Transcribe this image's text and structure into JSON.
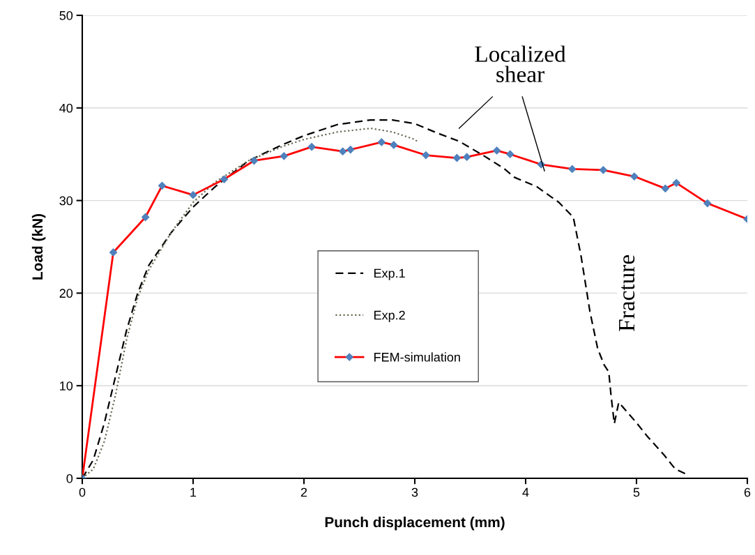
{
  "chart_data": {
    "type": "line",
    "xlabel": "Punch displacement (mm)",
    "ylabel": "Load (kN)",
    "xlim": [
      0,
      6
    ],
    "ylim": [
      0,
      50
    ],
    "xticks": [
      0,
      1,
      2,
      3,
      4,
      5,
      6
    ],
    "yticks": [
      0,
      10,
      20,
      30,
      40,
      50
    ],
    "grid": "y",
    "legend": "center",
    "series": [
      {
        "name": "Exp.1",
        "color": "#000000",
        "line_style": "dashed",
        "marker": "none",
        "x": [
          0,
          0.1,
          0.2,
          0.3,
          0.4,
          0.5,
          0.6,
          0.8,
          1.0,
          1.2,
          1.5,
          1.8,
          2.0,
          2.3,
          2.6,
          2.8,
          3.0,
          3.2,
          3.4,
          3.6,
          3.8,
          3.9,
          4.1,
          4.3,
          4.43,
          4.5,
          4.58,
          4.65,
          4.71,
          4.75,
          4.77,
          4.8,
          4.84,
          5.0,
          5.1,
          5.25,
          5.35,
          5.44
        ],
        "values": [
          0,
          2,
          6,
          11,
          16,
          20,
          23,
          26.5,
          29.3,
          31.5,
          34.3,
          36,
          37,
          38.2,
          38.7,
          38.7,
          38.3,
          37.3,
          36.4,
          35,
          33.5,
          32.5,
          31.5,
          29.8,
          28.2,
          24,
          18,
          14,
          12.2,
          11.5,
          9,
          5.9,
          8.2,
          6,
          4.5,
          2.5,
          1,
          0.5
        ]
      },
      {
        "name": "Exp.2",
        "color": "#6b6b55",
        "line_style": "dotted",
        "marker": "none",
        "x": [
          0,
          0.1,
          0.2,
          0.3,
          0.4,
          0.5,
          0.6,
          0.8,
          1.0,
          1.2,
          1.5,
          1.8,
          2.0,
          2.3,
          2.6,
          2.8,
          3.0,
          3.03
        ],
        "values": [
          0,
          1,
          4,
          9,
          15,
          19.5,
          22.5,
          26.5,
          29.8,
          32,
          34.3,
          35.8,
          36.6,
          37.4,
          37.8,
          37.4,
          36.6,
          36.3
        ]
      },
      {
        "name": "FEM-simulation",
        "color": "#ff0000",
        "line_style": "solid",
        "marker": "diamond",
        "x": [
          0,
          0.28,
          0.57,
          0.72,
          1.0,
          1.28,
          1.55,
          1.82,
          2.07,
          2.35,
          2.42,
          2.7,
          2.81,
          3.1,
          3.38,
          3.47,
          3.74,
          3.86,
          4.14,
          4.42,
          4.7,
          4.98,
          5.26,
          5.36,
          5.64,
          6.0
        ],
        "values": [
          0,
          24.4,
          28.2,
          31.6,
          30.6,
          32.3,
          34.3,
          34.8,
          35.8,
          35.3,
          35.5,
          36.3,
          36.0,
          34.9,
          34.6,
          34.7,
          35.4,
          35.0,
          33.9,
          33.4,
          33.3,
          32.6,
          31.3,
          31.9,
          29.7,
          28.0
        ]
      }
    ],
    "annotations": [
      "Localized shear",
      "Fracture"
    ]
  }
}
